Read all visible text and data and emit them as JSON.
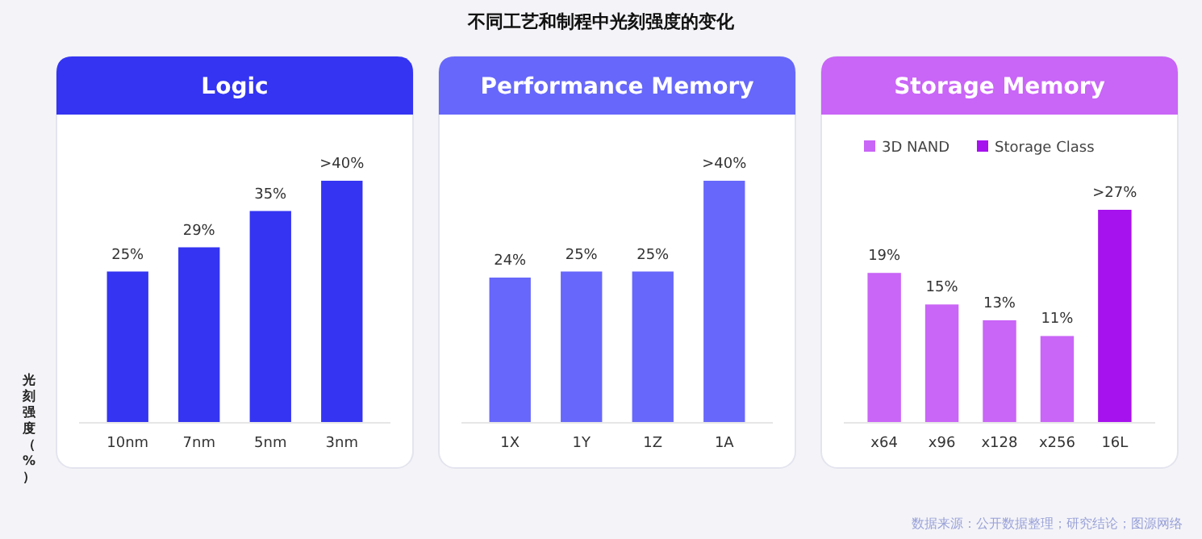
{
  "chart_data": [
    {
      "type": "other",
      "title": "不同工艺和制程中光刻强度的变化",
      "annotations": [
        "数据来源：公开数据整理；研究结论；图源网络"
      ]
    },
    {
      "type": "bar",
      "title": "Logic",
      "ylabel": "光刻强度（%）",
      "categories": [
        "10nm",
        "7nm",
        "5nm",
        "3nm"
      ],
      "series": [
        {
          "color": "#3434f2",
          "values": [
            25,
            29,
            35,
            40
          ],
          "value_labels": [
            "25%",
            "29%",
            "35%",
            ">40%"
          ]
        }
      ]
    },
    {
      "type": "bar",
      "title": "Performance Memory",
      "categories": [
        "1X",
        "1Y",
        "1Z",
        "1A"
      ],
      "series": [
        {
          "color": "#6767fb",
          "values": [
            24,
            25,
            25,
            40
          ],
          "value_labels": [
            "24%",
            "25%",
            "25%",
            ">40%"
          ]
        }
      ]
    },
    {
      "type": "bar",
      "title": "Storage Memory",
      "legend": "top",
      "categories": [
        "x64",
        "x96",
        "x128",
        "x256",
        "16L"
      ],
      "series": [
        {
          "name": "3D NAND",
          "color": "#c965f7",
          "values": [
            19,
            15,
            13,
            11,
            null
          ],
          "value_labels": [
            "19%",
            "15%",
            "13%",
            "11%",
            null
          ]
        },
        {
          "name": "Storage Class",
          "color": "#a612ee",
          "values": [
            null,
            null,
            null,
            null,
            27
          ],
          "value_labels": [
            null,
            null,
            null,
            null,
            ">27%"
          ]
        }
      ]
    }
  ]
}
